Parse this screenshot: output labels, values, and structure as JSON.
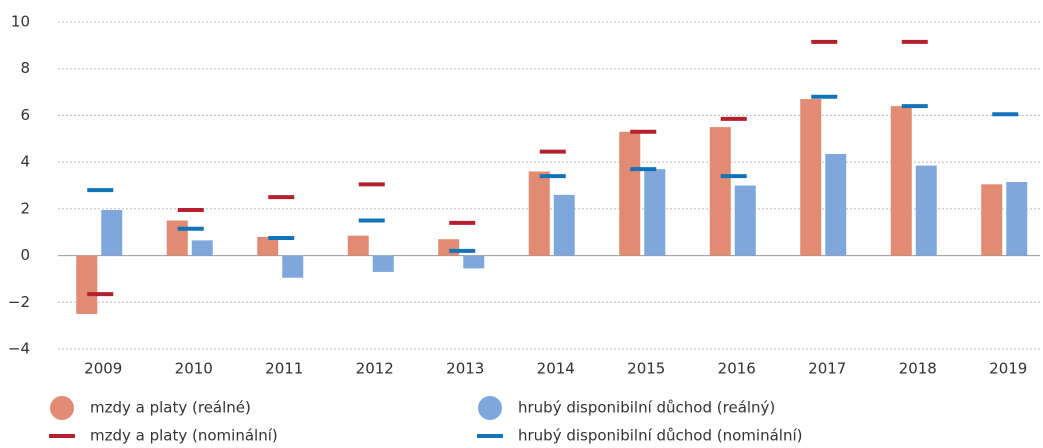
{
  "chart_data": {
    "type": "bar",
    "categories": [
      "2009",
      "2010",
      "2011",
      "2012",
      "2013",
      "2014",
      "2015",
      "2016",
      "2017",
      "2018",
      "2019"
    ],
    "series": [
      {
        "name": "mzdy a platy (reálné)",
        "color": "#e08b72",
        "mark": "bar",
        "values": [
          -2.5,
          1.5,
          0.8,
          0.85,
          0.7,
          3.6,
          5.3,
          5.5,
          6.7,
          6.4,
          3.05
        ]
      },
      {
        "name": "hrubý disponibilní důchod (reálný)",
        "color": "#7fa7dc",
        "mark": "bar",
        "values": [
          1.95,
          0.65,
          -0.95,
          -0.7,
          -0.55,
          2.6,
          3.7,
          3.0,
          4.35,
          3.85,
          3.15
        ]
      },
      {
        "name": "mzdy a platy (nominální)",
        "color": "#b5202e",
        "mark": "dash",
        "values": [
          -1.65,
          1.95,
          2.5,
          3.05,
          1.4,
          4.45,
          5.3,
          5.85,
          9.15,
          9.15,
          null
        ]
      },
      {
        "name": "hrubý disponibilní důchod (nominální)",
        "color": "#1273b8",
        "mark": "dash",
        "values": [
          2.8,
          1.15,
          0.75,
          1.5,
          0.2,
          3.4,
          3.7,
          3.4,
          6.8,
          6.4,
          6.05
        ]
      }
    ],
    "ylim": [
      -4,
      10
    ],
    "yticks": [
      {
        "value": -4,
        "label": "−4"
      },
      {
        "value": -2,
        "label": "−2"
      },
      0,
      2,
      4,
      6,
      8,
      10
    ],
    "grid": true
  }
}
